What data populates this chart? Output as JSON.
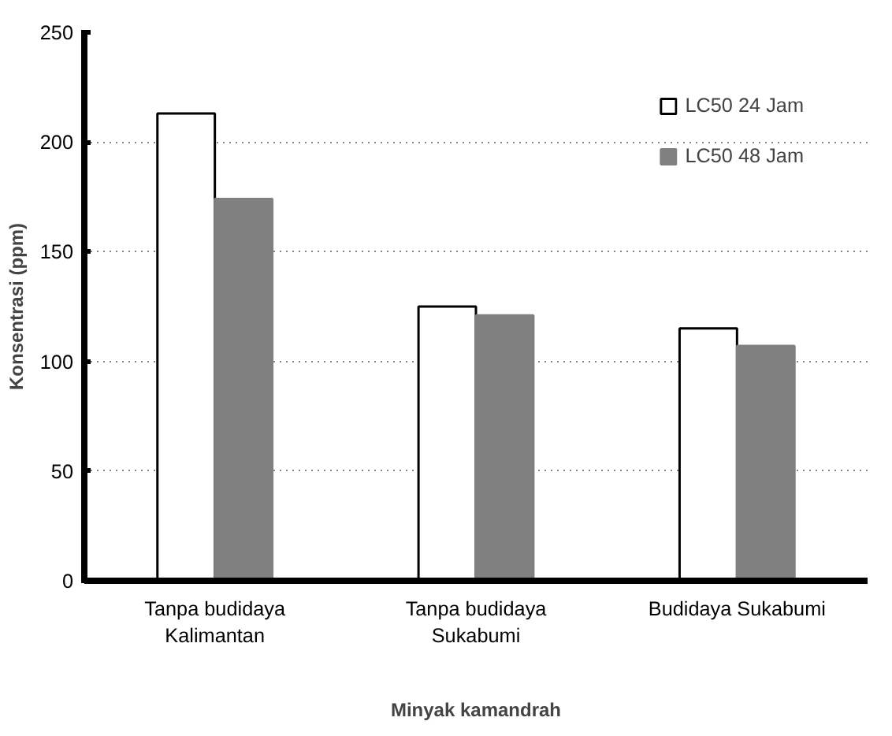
{
  "chart_data": {
    "type": "bar",
    "xlabel": "Minyak kamandrah",
    "ylabel": "Konsentrasi (ppm)",
    "categories": [
      "Tanpa budidaya\nKalimantan",
      "Tanpa budidaya\nSukabumi",
      "Budidaya Sukabumi"
    ],
    "series": [
      {
        "name": "LC50 24 Jam",
        "color": "#ffffff",
        "values": [
          213,
          125,
          115
        ]
      },
      {
        "name": "LC50 48 Jam",
        "color": "#808080",
        "values": [
          174,
          121,
          107
        ]
      }
    ],
    "ylim": [
      0,
      250
    ],
    "yticks": [
      0,
      50,
      100,
      150,
      200,
      250
    ],
    "grid": "y",
    "legend": "top right"
  }
}
